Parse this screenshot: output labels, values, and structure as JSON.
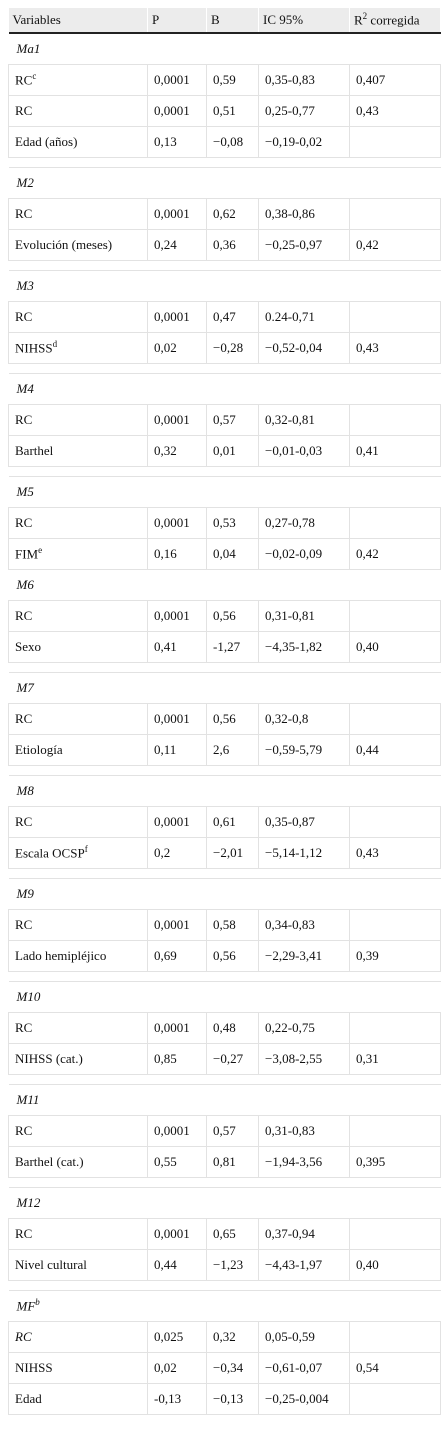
{
  "header": [
    "Variables",
    "P",
    "B",
    "IC 95%",
    {
      "main": "R",
      "sup": "2",
      "tail": " corregida"
    }
  ],
  "groups": [
    {
      "title": "Ma1",
      "rows": [
        {
          "variable": "RC",
          "sup": "c",
          "p": "0,0001",
          "b": "0,59",
          "ic": "0,35-0,83",
          "r2": "0,407"
        },
        {
          "variable": "RC",
          "p": "0,0001",
          "b": "0,51",
          "ic": "0,25-0,77",
          "r2": "0,43"
        },
        {
          "variable": "Edad (años)",
          "p": "0,13",
          "b": "−0,08",
          "ic": "−0,19-0,02"
        }
      ]
    },
    {
      "title": "M2",
      "rows": [
        {
          "variable": "RC",
          "p": "0,0001",
          "b": "0,62",
          "ic": "0,38-0,86"
        },
        {
          "variable": "Evolución (meses)",
          "p": "0,24",
          "b": "0,36",
          "ic": "−0,25-0,97",
          "r2": "0,42"
        }
      ]
    },
    {
      "title": "M3",
      "rows": [
        {
          "variable": "RC",
          "p": "0,0001",
          "b": "0,47",
          "ic": "0.24-0,71"
        },
        {
          "variable": "NIHSS",
          "sup": "d",
          "p": "0,02",
          "b": "−0,28",
          "ic": "−0,52-0,04",
          "r2": "0,43"
        }
      ]
    },
    {
      "title": "M4",
      "rows": [
        {
          "variable": "RC",
          "p": "0,0001",
          "b": "0,57",
          "ic": "0,32-0,81"
        },
        {
          "variable": "Barthel",
          "p": "0,32",
          "b": "0,01",
          "ic": "−0,01-0,03",
          "r2": "0,41"
        }
      ]
    },
    {
      "title": "M5",
      "rows": [
        {
          "variable": "RC",
          "p": "0,0001",
          "b": "0,53",
          "ic": "0,27-0,78"
        },
        {
          "variable": "FIM",
          "sup": "e",
          "p": "0,16",
          "b": "0,04",
          "ic": "−0,02-0,09",
          "r2": "0,42"
        }
      ]
    },
    {
      "title": "M6",
      "rows": [
        {
          "variable": "RC",
          "p": "0,0001",
          "b": "0,56",
          "ic": "0,31-0,81"
        },
        {
          "variable": "Sexo",
          "p": "0,41",
          "b": "-1,27",
          "ic": "−4,35-1,82",
          "r2": "0,40"
        }
      ]
    },
    {
      "title": "M7",
      "rows": [
        {
          "variable": "RC",
          "p": "0,0001",
          "b": "0,56",
          "ic": "0,32-0,8"
        },
        {
          "variable": "Etiología",
          "p": "0,11",
          "b": "2,6",
          "ic": "−0,59-5,79",
          "r2": "0,44"
        }
      ]
    },
    {
      "title": "M8",
      "rows": [
        {
          "variable": "RC",
          "p": "0,0001",
          "b": "0,61",
          "ic": "0,35-0,87"
        },
        {
          "variable": "Escala OCSP",
          "sup": "f",
          "p": "0,2",
          "b": "−2,01",
          "ic": "−5,14-1,12",
          "r2": "0,43"
        }
      ]
    },
    {
      "title": "M9",
      "rows": [
        {
          "variable": "RC",
          "p": "0,0001",
          "b": "0,58",
          "ic": "0,34-0,83"
        },
        {
          "variable": "Lado hemipléjico",
          "p": "0,69",
          "b": "0,56",
          "ic": "−2,29-3,41",
          "r2": "0,39"
        }
      ]
    },
    {
      "title": "M10",
      "rows": [
        {
          "variable": "RC",
          "p": "0,0001",
          "b": "0,48",
          "ic": "0,22-0,75"
        },
        {
          "variable": "NIHSS (cat.)",
          "p": "0,85",
          "b": "−0,27",
          "ic": "−3,08-2,55",
          "r2": "0,31"
        }
      ]
    },
    {
      "title": "M11",
      "rows": [
        {
          "variable": "RC",
          "p": "0,0001",
          "b": "0,57",
          "ic": "0,31-0,83"
        },
        {
          "variable": "Barthel (cat.)",
          "p": "0,55",
          "b": "0,81",
          "ic": "−1,94-3,56",
          "r2": "0,395"
        }
      ]
    },
    {
      "title": "M12",
      "rows": [
        {
          "variable": "RC",
          "p": "0,0001",
          "b": "0,65",
          "ic": "0,37-0,94"
        },
        {
          "variable": "Nivel cultural",
          "p": "0,44",
          "b": "−1,23",
          "ic": "−4,43-1,97",
          "r2": "0,40"
        }
      ]
    },
    {
      "title": "MF",
      "sup": "b",
      "rows": [
        {
          "variable": "RC",
          "p": "0,025",
          "b": "0,32",
          "ic": "0,05-0,59"
        },
        {
          "variable": "NIHSS",
          "p": "0,02",
          "b": "−0,34",
          "ic": "−0,61-0,07",
          "r2": "0,54"
        },
        {
          "variable": "Edad",
          "p": "-0,13",
          "b": "−0,13",
          "ic": "−0,25-0,004"
        }
      ]
    }
  ]
}
